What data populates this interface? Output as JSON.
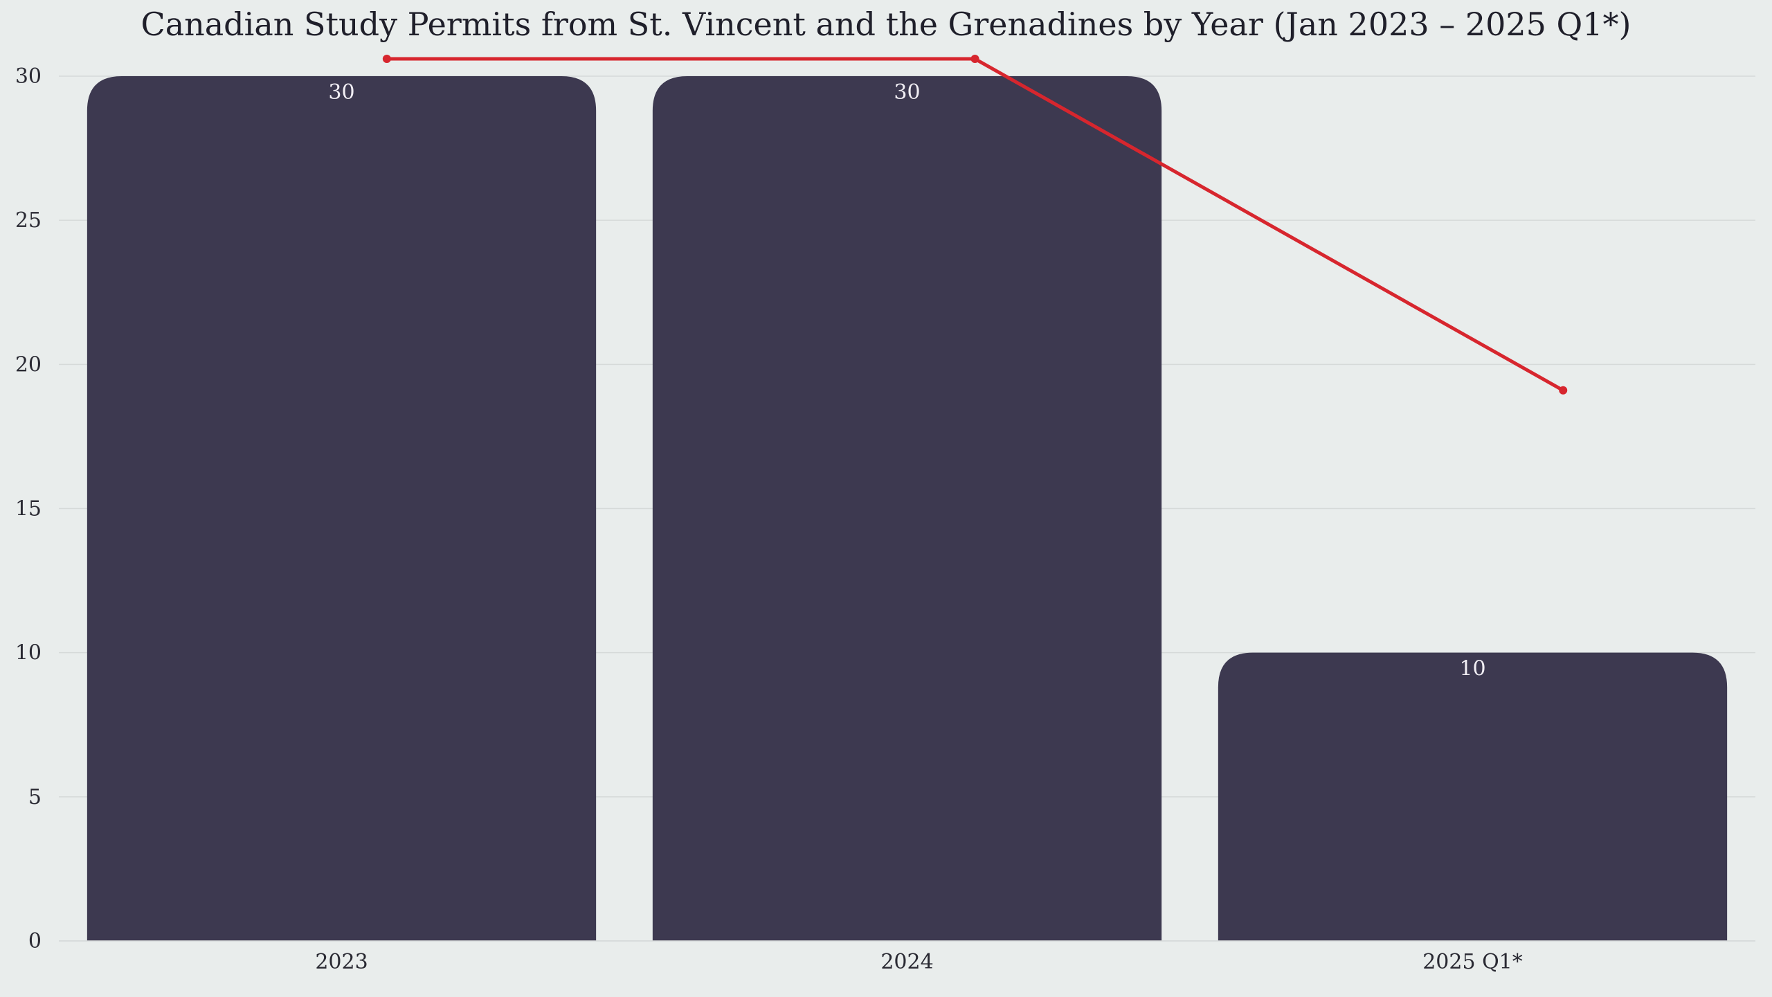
{
  "chart_data": {
    "type": "bar",
    "title": "Canadian Study Permits from St. Vincent and the Grenadines by Year (Jan 2023 – 2025 Q1*)",
    "xlabel": "",
    "ylabel": "",
    "categories": [
      "2023",
      "2024",
      "2025 Q1*"
    ],
    "values": [
      30,
      30,
      10
    ],
    "data_labels": [
      "30",
      "30",
      "10"
    ],
    "ylim": [
      0,
      30
    ],
    "yticks": [
      0,
      5,
      10,
      15,
      20,
      25,
      30
    ],
    "grid": true,
    "legend": "none",
    "overlay_line": {
      "type": "line",
      "values": [
        30.6,
        30.6,
        19.1
      ]
    },
    "colors": {
      "bar": "#3d3950",
      "line": "#d7262e",
      "background": "#e9edec",
      "grid": "#d6dad9"
    }
  }
}
